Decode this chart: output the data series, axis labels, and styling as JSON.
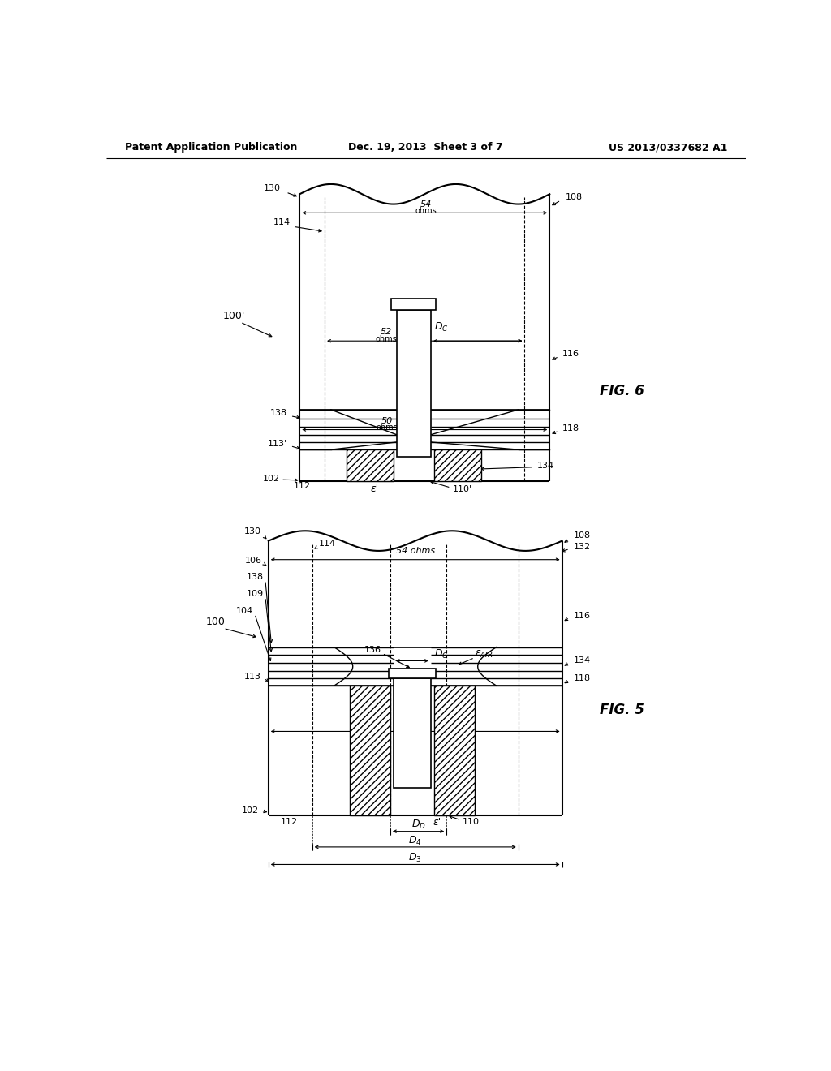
{
  "bg_color": "#ffffff",
  "line_color": "#000000",
  "header": {
    "left": "Patent Application Publication",
    "center": "Dec. 19, 2013  Sheet 3 of 7",
    "right": "US 2013/0337682 A1"
  }
}
